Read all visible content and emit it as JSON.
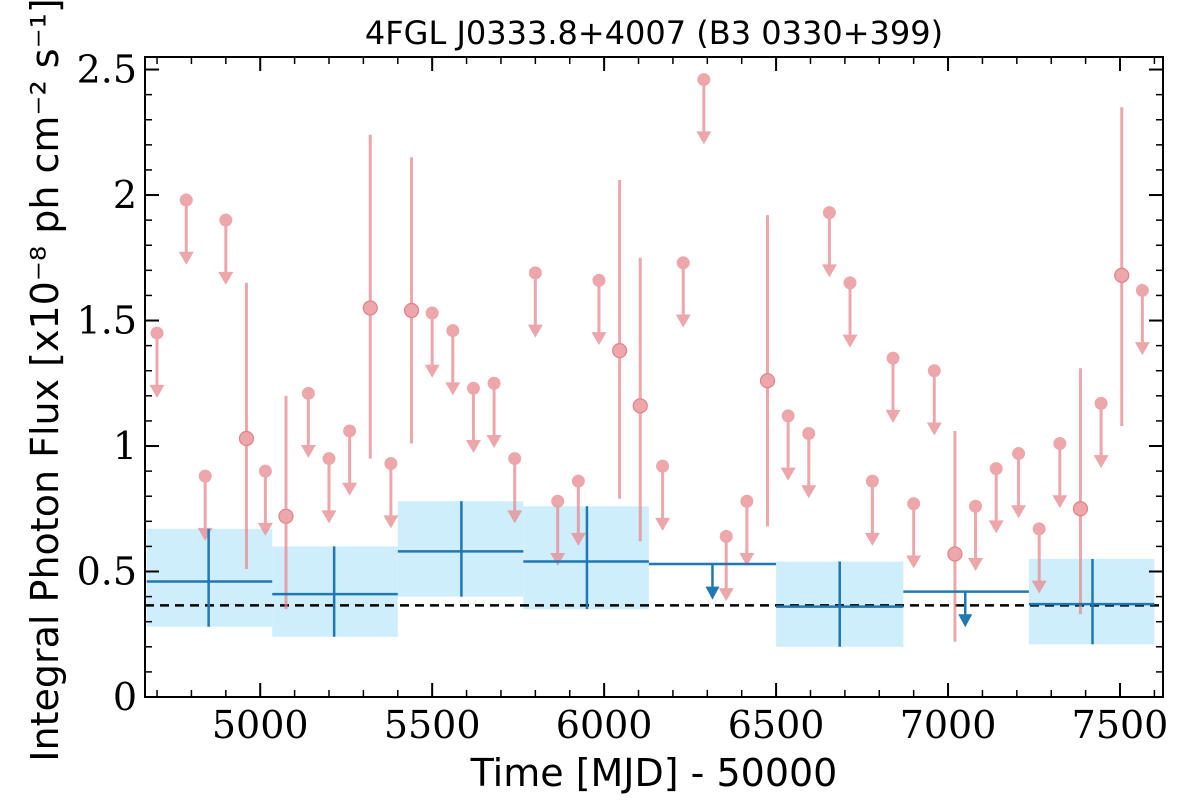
{
  "chart_data": {
    "type": "scatter",
    "title": "4FGL J0333.8+4007 (B3 0330+399)",
    "xlabel": "Time [MJD] - 50000",
    "ylabel": "Integral Photon Flux [x10⁻⁸ ph cm⁻² s⁻¹]",
    "xlim": [
      4665,
      7625
    ],
    "ylim": [
      0,
      2.55
    ],
    "xticks": [
      5000,
      5500,
      6000,
      6500,
      7000,
      7500
    ],
    "xtick_labels": [
      "5000",
      "5500",
      "6000",
      "6500",
      "7000",
      "7500"
    ],
    "yticks": [
      0,
      0.5,
      1,
      1.5,
      2,
      2.5
    ],
    "ytick_labels": [
      "0",
      "0.5",
      "1",
      "1.5",
      "2",
      "2.5"
    ],
    "grid": false,
    "reference_line": {
      "y": 0.365,
      "style": "dashed"
    },
    "colors": {
      "fine": "#e88a8e",
      "coarse": "#1f77b4",
      "band": "#cfeefc",
      "ref": "#000000"
    },
    "series": [
      {
        "points": [
          {
            "x": 4700,
            "y": 1.45,
            "ul": true
          },
          {
            "x": 4785,
            "y": 1.98,
            "ul": true
          },
          {
            "x": 4840,
            "y": 0.88,
            "ul": true
          },
          {
            "x": 4900,
            "y": 1.9,
            "ul": true
          },
          {
            "x": 4960,
            "y": 1.03,
            "lo": 0.51,
            "hi": 1.65
          },
          {
            "x": 5015,
            "y": 0.9,
            "ul": true
          },
          {
            "x": 5075,
            "y": 0.72,
            "lo": 0.35,
            "hi": 1.2
          },
          {
            "x": 5140,
            "y": 1.21,
            "ul": true
          },
          {
            "x": 5200,
            "y": 0.95,
            "ul": true
          },
          {
            "x": 5260,
            "y": 1.06,
            "ul": true
          },
          {
            "x": 5320,
            "y": 1.55,
            "lo": 0.95,
            "hi": 2.24
          },
          {
            "x": 5380,
            "y": 0.93,
            "ul": true
          },
          {
            "x": 5440,
            "y": 1.54,
            "lo": 1.01,
            "hi": 2.15
          },
          {
            "x": 5500,
            "y": 1.53,
            "ul": true
          },
          {
            "x": 5560,
            "y": 1.46,
            "ul": true
          },
          {
            "x": 5620,
            "y": 1.23,
            "ul": true
          },
          {
            "x": 5680,
            "y": 1.25,
            "ul": true
          },
          {
            "x": 5740,
            "y": 0.95,
            "ul": true
          },
          {
            "x": 5800,
            "y": 1.69,
            "ul": true
          },
          {
            "x": 5865,
            "y": 0.78,
            "ul": true
          },
          {
            "x": 5925,
            "y": 0.86,
            "ul": true
          },
          {
            "x": 5985,
            "y": 1.66,
            "ul": true
          },
          {
            "x": 6045,
            "y": 1.38,
            "lo": 0.79,
            "hi": 2.06
          },
          {
            "x": 6105,
            "y": 1.16,
            "lo": 0.62,
            "hi": 1.75
          },
          {
            "x": 6170,
            "y": 0.92,
            "ul": true
          },
          {
            "x": 6230,
            "y": 1.73,
            "ul": true
          },
          {
            "x": 6290,
            "y": 2.46,
            "ul": true
          },
          {
            "x": 6355,
            "y": 0.64,
            "ul": true
          },
          {
            "x": 6415,
            "y": 0.78,
            "ul": true
          },
          {
            "x": 6475,
            "y": 1.26,
            "lo": 0.68,
            "hi": 1.92
          },
          {
            "x": 6535,
            "y": 1.12,
            "ul": true
          },
          {
            "x": 6595,
            "y": 1.05,
            "ul": true
          },
          {
            "x": 6655,
            "y": 1.93,
            "ul": true
          },
          {
            "x": 6715,
            "y": 1.65,
            "ul": true
          },
          {
            "x": 6780,
            "y": 0.86,
            "ul": true
          },
          {
            "x": 6840,
            "y": 1.35,
            "ul": true
          },
          {
            "x": 6900,
            "y": 0.77,
            "ul": true
          },
          {
            "x": 6960,
            "y": 1.3,
            "ul": true
          },
          {
            "x": 7020,
            "y": 0.57,
            "lo": 0.22,
            "hi": 1.06
          },
          {
            "x": 7080,
            "y": 0.76,
            "ul": true
          },
          {
            "x": 7140,
            "y": 0.91,
            "ul": true
          },
          {
            "x": 7205,
            "y": 0.97,
            "ul": true
          },
          {
            "x": 7265,
            "y": 0.67,
            "ul": true
          },
          {
            "x": 7325,
            "y": 1.01,
            "ul": true
          },
          {
            "x": 7385,
            "y": 0.75,
            "lo": 0.33,
            "hi": 1.31
          },
          {
            "x": 7445,
            "y": 1.17,
            "ul": true
          },
          {
            "x": 7505,
            "y": 1.68,
            "lo": 1.08,
            "hi": 2.35
          },
          {
            "x": 7565,
            "y": 1.62,
            "ul": true
          }
        ]
      },
      {
        "points": [
          {
            "x": 4850,
            "x0": 4670,
            "x1": 5035,
            "y": 0.46,
            "lo": 0.28,
            "hi": 0.67
          },
          {
            "x": 5215,
            "x0": 5035,
            "x1": 5400,
            "y": 0.41,
            "lo": 0.24,
            "hi": 0.6
          },
          {
            "x": 5585,
            "x0": 5400,
            "x1": 5765,
            "y": 0.58,
            "lo": 0.4,
            "hi": 0.78
          },
          {
            "x": 5950,
            "x0": 5765,
            "x1": 6130,
            "y": 0.54,
            "lo": 0.35,
            "hi": 0.76
          },
          {
            "x": 6315,
            "x0": 6130,
            "x1": 6500,
            "y": 0.53,
            "ul": true
          },
          {
            "x": 6685,
            "x0": 6500,
            "x1": 6870,
            "y": 0.36,
            "lo": 0.2,
            "hi": 0.54
          },
          {
            "x": 7050,
            "x0": 6870,
            "x1": 7235,
            "y": 0.42,
            "ul": true
          },
          {
            "x": 7420,
            "x0": 7235,
            "x1": 7600,
            "y": 0.37,
            "lo": 0.21,
            "hi": 0.55
          }
        ]
      }
    ]
  }
}
